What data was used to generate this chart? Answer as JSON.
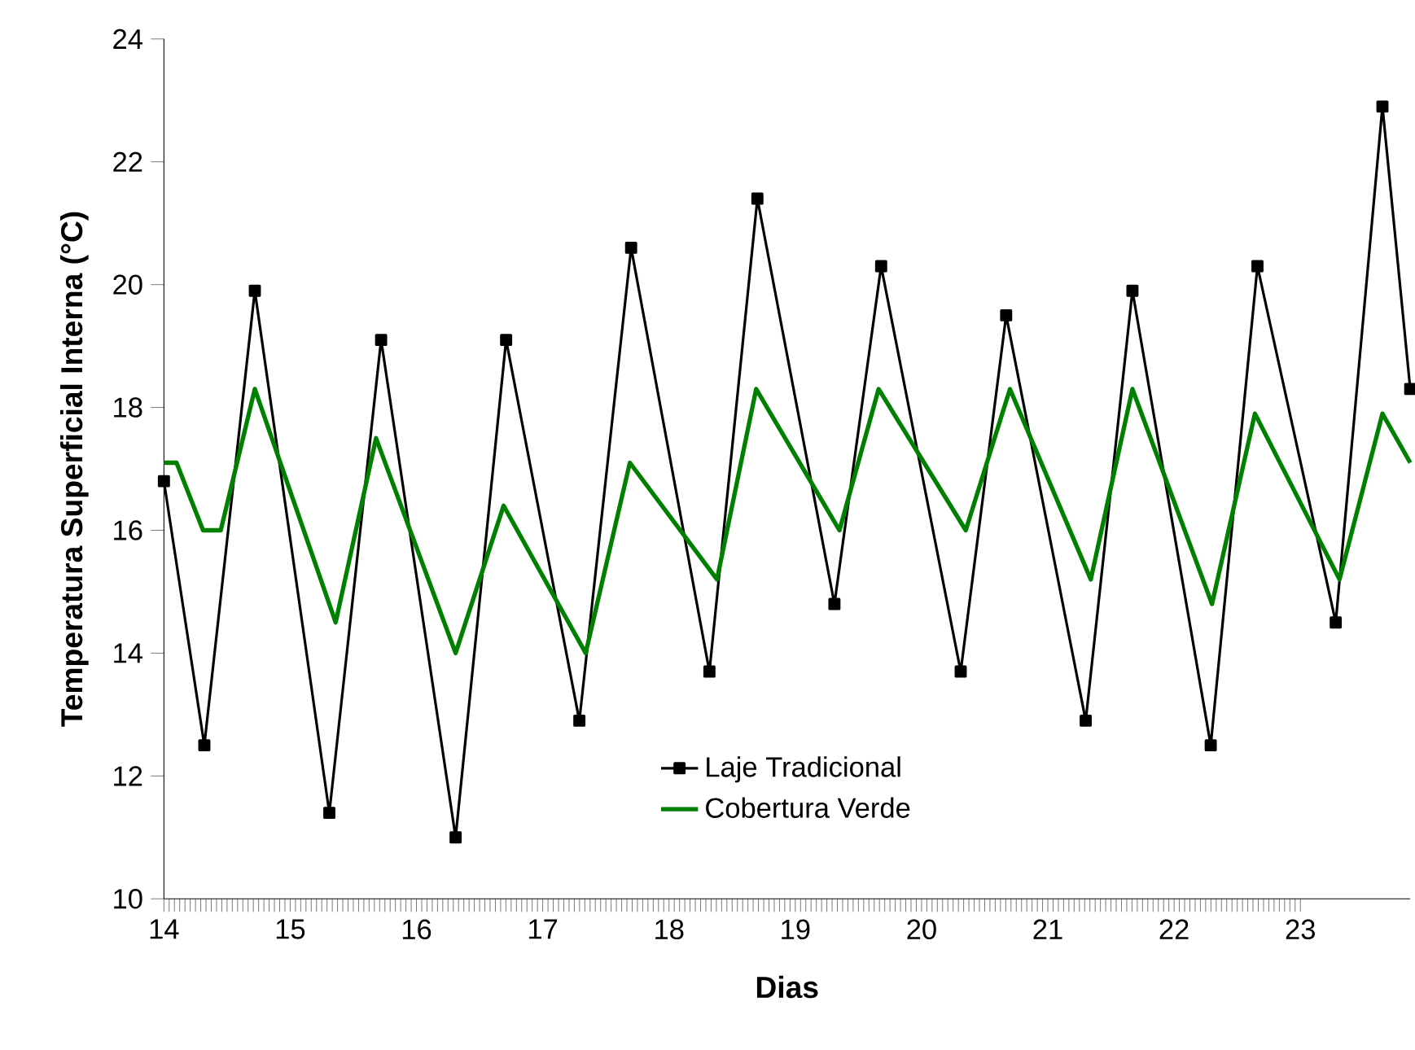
{
  "chart_data": {
    "type": "line",
    "xlabel": "Dias",
    "ylabel": "Temperatura Superficial Interna (°C)",
    "xlim": [
      14,
      23.87
    ],
    "ylim": [
      10,
      24
    ],
    "xticks": [
      14,
      15,
      16,
      17,
      18,
      19,
      20,
      21,
      22,
      23
    ],
    "yticks": [
      10,
      12,
      14,
      16,
      18,
      20,
      22,
      24
    ],
    "legend": "bottom",
    "line_style": "solid",
    "series": [
      {
        "name": "Laje Tradicional",
        "color": "#000000",
        "marker": "square",
        "x": [
          14.0,
          14.32,
          14.72,
          15.31,
          15.72,
          16.31,
          16.71,
          17.29,
          17.7,
          18.32,
          18.7,
          19.31,
          19.68,
          20.31,
          20.67,
          21.3,
          21.67,
          22.29,
          22.66,
          23.28,
          23.65,
          23.87
        ],
        "values": [
          16.8,
          12.5,
          19.9,
          11.4,
          19.1,
          11.0,
          19.1,
          12.9,
          20.6,
          13.7,
          21.4,
          14.8,
          20.3,
          13.7,
          19.5,
          12.9,
          19.9,
          12.5,
          20.3,
          14.5,
          22.9,
          18.3
        ]
      },
      {
        "name": "Cobertura Verde",
        "color": "#008000",
        "marker": "none",
        "x": [
          14.0,
          14.1,
          14.31,
          14.45,
          14.72,
          15.36,
          15.68,
          16.31,
          16.69,
          17.34,
          17.69,
          18.38,
          18.69,
          19.35,
          19.66,
          20.35,
          20.7,
          21.34,
          21.67,
          22.3,
          22.64,
          23.31,
          23.65,
          23.87
        ],
        "values": [
          17.1,
          17.1,
          16.0,
          16.0,
          18.3,
          14.5,
          17.5,
          14.0,
          16.4,
          14.0,
          17.1,
          15.2,
          18.3,
          16.0,
          18.3,
          16.0,
          18.3,
          15.2,
          18.3,
          14.8,
          17.9,
          15.2,
          17.9,
          17.1
        ]
      }
    ]
  }
}
